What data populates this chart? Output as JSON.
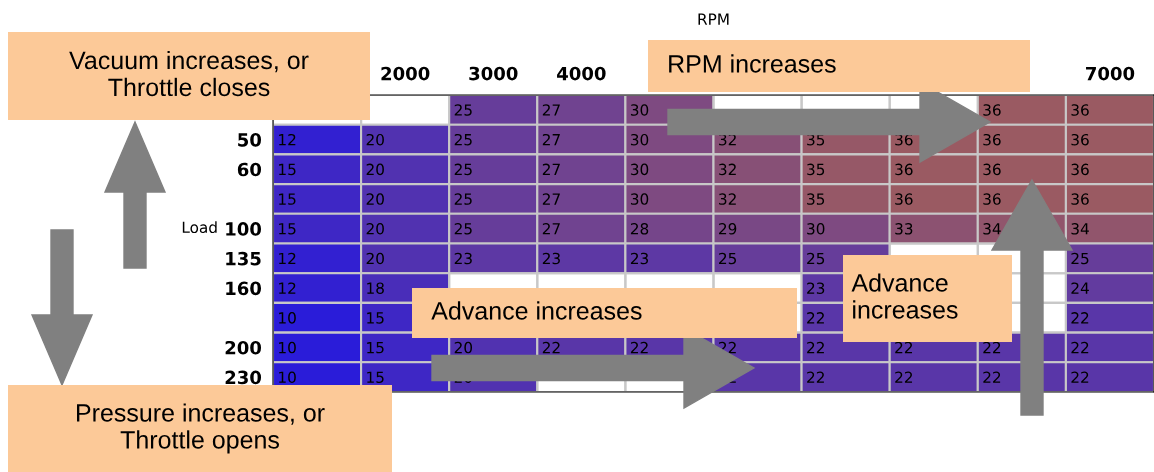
{
  "chart_data": {
    "type": "heatmap",
    "xlabel": "RPM",
    "ylabel": "Load",
    "categories": [
      null,
      "2000",
      "3000",
      "4000",
      null,
      null,
      null,
      null,
      null,
      "7000"
    ],
    "y_categories": [
      null,
      "50",
      "60",
      null,
      "100",
      "135",
      "160",
      null,
      "200",
      "230"
    ],
    "cells": [
      [
        null,
        null,
        25,
        27,
        30,
        null,
        null,
        null,
        36,
        36
      ],
      [
        12,
        20,
        25,
        27,
        30,
        32,
        35,
        36,
        36,
        36
      ],
      [
        15,
        20,
        25,
        27,
        30,
        32,
        35,
        36,
        36,
        36
      ],
      [
        15,
        20,
        25,
        27,
        30,
        32,
        35,
        36,
        36,
        36
      ],
      [
        15,
        20,
        25,
        27,
        28,
        29,
        30,
        33,
        34,
        34
      ],
      [
        12,
        20,
        23,
        23,
        23,
        25,
        25,
        null,
        null,
        25
      ],
      [
        12,
        18,
        null,
        null,
        null,
        null,
        23,
        null,
        null,
        24
      ],
      [
        10,
        15,
        null,
        null,
        null,
        null,
        22,
        null,
        null,
        22
      ],
      [
        10,
        15,
        20,
        22,
        22,
        22,
        22,
        22,
        22,
        22
      ],
      [
        10,
        15,
        20,
        null,
        null,
        22,
        22,
        22,
        22,
        22
      ]
    ],
    "colors": [
      "#2a1cd9",
      "#5d38a4",
      "#9a5a62"
    ],
    "data_labels": true,
    "annotations": [
      "Vacuum increases, or\nThrottle closes",
      "RPM increases",
      "Advance increases",
      "Advance\nincreases",
      "Pressure increases, or\nThrottle opens"
    ]
  }
}
